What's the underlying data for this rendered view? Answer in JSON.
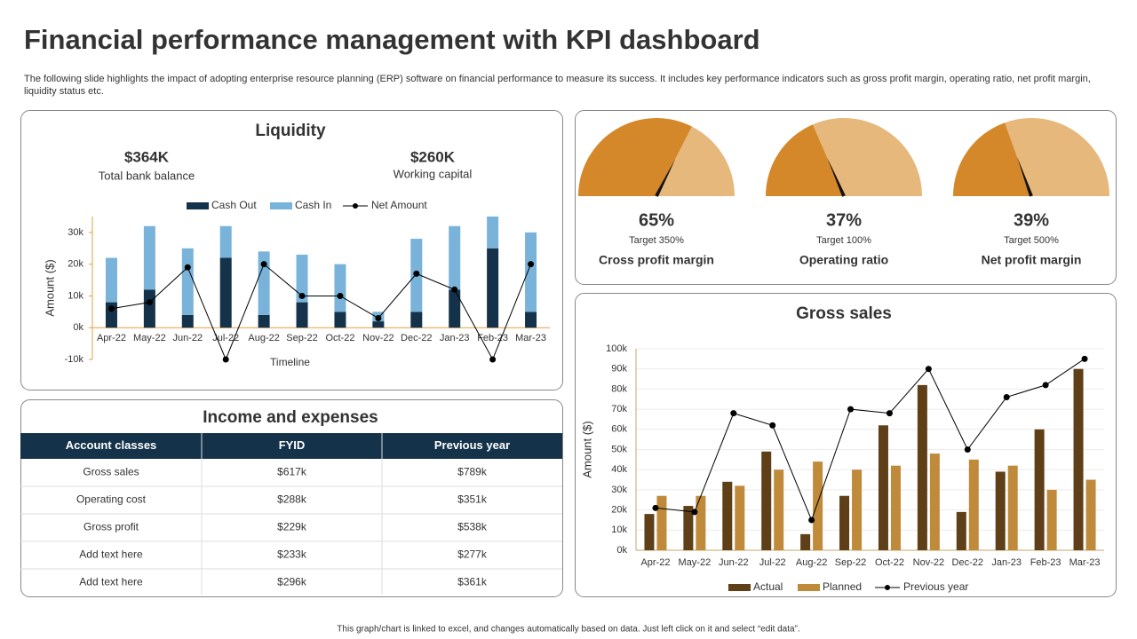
{
  "header": {
    "title": "Financial performance management with KPI dashboard",
    "description": "The following slide highlights the impact of adopting enterprise resource planning (ERP) software on financial performance to measure its success. It includes key performance indicators such as gross profit margin, operating ratio, net profit margin, liquidity status etc."
  },
  "kpis": [
    {
      "value": "$364K",
      "label": "Total bank balance"
    },
    {
      "value": "$260K",
      "label": "Working capital"
    }
  ],
  "table": {
    "title": "Income and expenses",
    "columns": [
      "Account classes",
      "FYID",
      "Previous year"
    ],
    "rows": [
      [
        "Gross sales",
        "$617k",
        "$789k"
      ],
      [
        "Operating cost",
        "$288k",
        "$351k"
      ],
      [
        "Gross profit",
        "$229k",
        "$538k"
      ],
      [
        "Add text here",
        "$233k",
        "$277k"
      ],
      [
        "Add text here",
        "$296k",
        "$361k"
      ]
    ]
  },
  "footer": "This graph/chart is linked to excel, and changes automatically based on data. Just left click on it and select “edit data”.",
  "chart_data": [
    {
      "type": "bar",
      "title": "Liquidity",
      "stacked": true,
      "grid": false,
      "y_label": "Amount ($)",
      "x_label": "Timeline",
      "categories": [
        "Apr-22",
        "May-22",
        "Jun-22",
        "Jul-22",
        "Aug-22",
        "Sep-22",
        "Oct-22",
        "Nov-22",
        "Dec-22",
        "Jan-23",
        "Feb-23",
        "Mar-23"
      ],
      "series": [
        {
          "name": "Cash Out",
          "color": "#14334a",
          "values": [
            8,
            12,
            4,
            22,
            4,
            8,
            5,
            2,
            5,
            12,
            25,
            5
          ]
        },
        {
          "name": "Cash In",
          "color": "#7ab3d9",
          "values": [
            14,
            20,
            21,
            10,
            20,
            15,
            15,
            3,
            23,
            20,
            10,
            25
          ]
        },
        {
          "name": "Net Amount",
          "color": "#000000",
          "type": "line",
          "values": [
            6,
            8,
            19,
            -10,
            20,
            10,
            10,
            3,
            17,
            12,
            -10,
            20
          ]
        }
      ],
      "ylim": [
        -10,
        35
      ],
      "yticks": [
        {
          "value": -10,
          "label": "-10k"
        },
        {
          "value": 0,
          "label": "0k"
        },
        {
          "value": 10,
          "label": "10k"
        },
        {
          "value": 20,
          "label": "20k"
        },
        {
          "value": 30,
          "label": "30k"
        }
      ]
    },
    {
      "type": "bar",
      "title": "Gross sales",
      "stacked": false,
      "grid": true,
      "y_label": "Amount ($)",
      "categories": [
        "Apr-22",
        "May-22",
        "Jun-22",
        "Jul-22",
        "Aug-22",
        "Sep-22",
        "Oct-22",
        "Nov-22",
        "Dec-22",
        "Jan-23",
        "Feb-23",
        "Mar-23"
      ],
      "series": [
        {
          "name": "Actual",
          "color": "#5e3f17",
          "values": [
            18,
            22,
            34,
            49,
            8,
            27,
            62,
            82,
            19,
            39,
            60,
            90
          ]
        },
        {
          "name": "Planned",
          "color": "#bf8a3a",
          "values": [
            27,
            27,
            32,
            40,
            44,
            40,
            42,
            48,
            45,
            42,
            30,
            35
          ]
        },
        {
          "name": "Previous year",
          "color": "#000000",
          "type": "line",
          "values": [
            21,
            19,
            68,
            62,
            15,
            70,
            68,
            90,
            50,
            76,
            82,
            95
          ]
        }
      ],
      "ylim": [
        0,
        100
      ],
      "yticks": [
        {
          "value": 0,
          "label": "0k"
        },
        {
          "value": 10,
          "label": "10k"
        },
        {
          "value": 20,
          "label": "20k"
        },
        {
          "value": 30,
          "label": "30k"
        },
        {
          "value": 40,
          "label": "40k"
        },
        {
          "value": 50,
          "label": "50k"
        },
        {
          "value": 60,
          "label": "60k"
        },
        {
          "value": 70,
          "label": "70k"
        },
        {
          "value": 80,
          "label": "80k"
        },
        {
          "value": 90,
          "label": "90k"
        },
        {
          "value": 100,
          "label": "100k"
        }
      ]
    },
    {
      "type": "gauge",
      "title": "Cross profit margin",
      "subtitle": "Target 350%",
      "values": [
        65
      ],
      "value_labels": [
        "65%"
      ],
      "colors": [
        "#d4882a",
        "#e6b87c"
      ]
    },
    {
      "type": "gauge",
      "title": "Operating ratio",
      "subtitle": "Target 100%",
      "values": [
        37
      ],
      "value_labels": [
        "37%"
      ],
      "colors": [
        "#d4882a",
        "#e6b87c"
      ]
    },
    {
      "type": "gauge",
      "title": "Net profit margin",
      "subtitle": "Target 500%",
      "values": [
        39
      ],
      "value_labels": [
        "39%"
      ],
      "colors": [
        "#d4882a",
        "#e6b87c"
      ]
    }
  ]
}
